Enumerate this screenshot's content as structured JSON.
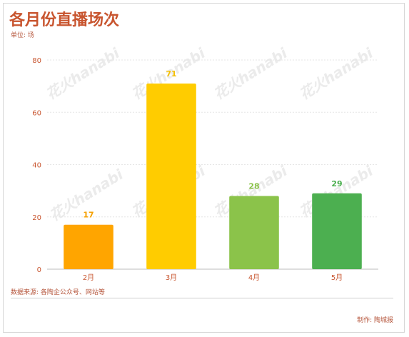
{
  "header": {
    "title": "各月份直播场次",
    "unit": "单位: 场"
  },
  "footer": {
    "source": "数据来源: 各陶企公众号、网站等",
    "credit": "制作: 陶城报"
  },
  "watermark": "花火hanabi",
  "colors": {
    "title": "#c8552f",
    "text": "#b5543a",
    "bars": [
      "#ffa500",
      "#ffcc00",
      "#8bc34a",
      "#4caf50"
    ],
    "labels": [
      "#f5a000",
      "#f5c000",
      "#8bc34a",
      "#4caf50"
    ]
  },
  "chart_data": {
    "type": "bar",
    "title": "各月份直播场次",
    "xlabel": "",
    "ylabel": "单位: 场",
    "categories": [
      "2月",
      "3月",
      "4月",
      "5月"
    ],
    "values": [
      17,
      71,
      28,
      29
    ],
    "ylim": [
      0,
      80
    ],
    "yticks": [
      0,
      20,
      40,
      60,
      80
    ],
    "grid": true,
    "legend": "none"
  }
}
